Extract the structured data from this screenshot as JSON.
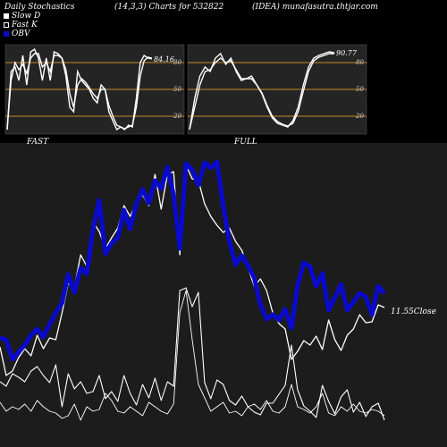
{
  "header": {
    "left": "Daily Stochastics",
    "center": "(14,3,3) Charts for 532822",
    "right": "(IDEA) munafasutra.thtjar.com"
  },
  "legend": {
    "slow_d": "Slow  D",
    "fast_k": "Fast K",
    "obv": "OBV"
  },
  "colors": {
    "background": "#000000",
    "bottom_bg": "#1c1c1c",
    "panel_bg": "#242424",
    "grid_line": "#c98a2a",
    "line": "#ffffff",
    "obv": "#0a0acc"
  },
  "chart_data": [
    {
      "type": "line",
      "panel_label": "FAST",
      "ylim": [
        0,
        100
      ],
      "y_ticks": [
        20,
        50,
        80
      ],
      "current_value_label": "84.16",
      "series": [
        {
          "values": [
            5,
            70,
            75,
            60,
            88,
            55,
            92,
            95,
            85,
            60,
            85,
            60,
            92,
            90,
            85,
            65,
            30,
            25,
            70,
            60,
            55,
            50,
            40,
            35,
            55,
            50,
            25,
            15,
            5,
            8,
            5,
            10,
            8,
            40,
            80,
            88,
            85,
            84
          ]
        },
        {
          "values": [
            5,
            60,
            80,
            72,
            78,
            68,
            85,
            90,
            90,
            75,
            80,
            70,
            88,
            88,
            85,
            72,
            45,
            30,
            55,
            62,
            58,
            52,
            45,
            40,
            50,
            50,
            32,
            20,
            10,
            8,
            6,
            8,
            10,
            30,
            65,
            82,
            86,
            85
          ]
        }
      ]
    },
    {
      "type": "line",
      "panel_label": "FULL",
      "ylim": [
        0,
        100
      ],
      "y_ticks": [
        20,
        50,
        80
      ],
      "current_value_label": "90.77",
      "series": [
        {
          "values": [
            5,
            40,
            65,
            75,
            70,
            85,
            90,
            78,
            85,
            70,
            60,
            62,
            65,
            55,
            45,
            30,
            18,
            12,
            10,
            8,
            15,
            30,
            55,
            75,
            85,
            88,
            90,
            92,
            91
          ]
        },
        {
          "values": [
            5,
            30,
            55,
            70,
            72,
            80,
            85,
            80,
            82,
            72,
            62,
            62,
            62,
            55,
            46,
            32,
            20,
            14,
            11,
            9,
            12,
            25,
            48,
            70,
            82,
            86,
            88,
            90,
            90
          ]
        }
      ]
    },
    {
      "type": "line",
      "panel_label": "",
      "close_label": "11.55",
      "close_suffix": "Close",
      "series": [
        {
          "name": "OBV",
          "values": [
            378,
            380,
            402,
            394,
            386,
            375,
            368,
            377,
            363,
            350,
            339,
            307,
            327,
            300,
            306,
            257,
            224,
            284,
            272,
            266,
            235,
            256,
            228,
            212,
            227,
            202,
            211,
            187,
            218,
            278,
            183,
            190,
            207,
            182,
            188,
            181,
            230,
            270,
            296,
            286,
            297,
            311,
            341,
            357,
            352,
            358,
            346,
            367,
            319,
            294,
            298,
            320,
            306,
            347,
            333,
            318,
            347,
            338,
            328,
            332,
            352,
            320,
            328
          ]
        },
        {
          "values": [
            388,
            420,
            415,
            400,
            390,
            398,
            375,
            390,
            378,
            380,
            350,
            317,
            322,
            285,
            298,
            248,
            259,
            278,
            266,
            255,
            230,
            242,
            227,
            218,
            230,
            195,
            234,
            195,
            192,
            285,
            185,
            200,
            202,
            228,
            242,
            252,
            260,
            255,
            270,
            280,
            300,
            320,
            312,
            325,
            350,
            362,
            368,
            402,
            393,
            381,
            386,
            376,
            391,
            358,
            380,
            392,
            375,
            368,
            352,
            361,
            360,
            341,
            344
          ]
        },
        {
          "values": [
            427,
            432,
            418,
            422,
            427,
            415,
            410,
            420,
            428,
            408,
            455,
            418,
            435,
            427,
            440,
            438,
            420,
            446,
            438,
            449,
            420,
            440,
            453,
            430,
            445,
            423,
            448,
            427,
            432,
            325,
            322,
            343,
            327,
            428,
            446,
            425,
            430,
            448,
            453,
            443,
            455,
            461,
            464,
            451,
            451,
            441,
            431,
            386,
            436,
            454,
            460,
            467,
            431,
            449,
            463,
            444,
            436,
            461,
            450,
            466,
            455,
            451,
            470
          ]
        },
        {
          "values": [
            450,
            460,
            455,
            458,
            452,
            460,
            448,
            455,
            460,
            462,
            468,
            465,
            452,
            470,
            455,
            460,
            458,
            440,
            448,
            460,
            462,
            455,
            460,
            465,
            450,
            455,
            460,
            463,
            452,
            350,
            325,
            380,
            430,
            445,
            460,
            455,
            450,
            462,
            460,
            465,
            455,
            452,
            458,
            448,
            460,
            462,
            455,
            430,
            455,
            458,
            462,
            455,
            440,
            462,
            465,
            455,
            460,
            452,
            460,
            462,
            458,
            460,
            465
          ]
        }
      ]
    }
  ]
}
